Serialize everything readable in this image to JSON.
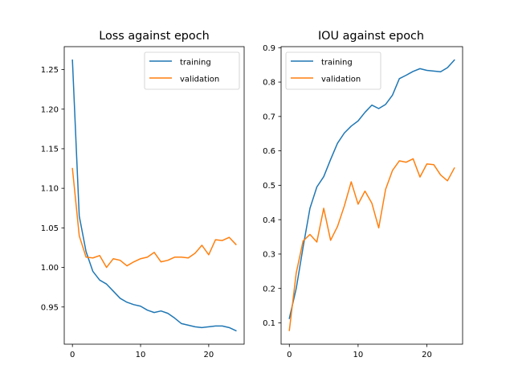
{
  "chart_data": [
    {
      "type": "line",
      "title": "Loss against epoch",
      "xlabel": "",
      "ylabel": "",
      "xlim": [
        -1.2,
        25.2
      ],
      "ylim": [
        0.903,
        1.279
      ],
      "xticks": [
        0,
        10,
        20
      ],
      "yticks": [
        0.95,
        1.0,
        1.05,
        1.1,
        1.15,
        1.2,
        1.25
      ],
      "ytick_labels": [
        "0.95",
        "1.00",
        "1.05",
        "1.10",
        "1.15",
        "1.20",
        "1.25"
      ],
      "legend": "top-right",
      "grid": false,
      "x": [
        0,
        1,
        2,
        3,
        4,
        5,
        6,
        7,
        8,
        9,
        10,
        11,
        12,
        13,
        14,
        15,
        16,
        17,
        18,
        19,
        20,
        21,
        22,
        23,
        24
      ],
      "series": [
        {
          "name": "training",
          "color": "#1f77b4",
          "values": [
            1.262,
            1.065,
            1.02,
            0.995,
            0.984,
            0.979,
            0.97,
            0.961,
            0.956,
            0.953,
            0.951,
            0.946,
            0.943,
            0.945,
            0.942,
            0.936,
            0.929,
            0.927,
            0.925,
            0.924,
            0.925,
            0.926,
            0.926,
            0.924,
            0.92
          ]
        },
        {
          "name": "validation",
          "color": "#ff7f0e",
          "values": [
            1.125,
            1.04,
            1.013,
            1.012,
            1.015,
            1.0,
            1.011,
            1.009,
            1.002,
            1.007,
            1.011,
            1.013,
            1.019,
            1.007,
            1.009,
            1.013,
            1.013,
            1.012,
            1.018,
            1.028,
            1.016,
            1.035,
            1.034,
            1.038,
            1.029
          ]
        }
      ]
    },
    {
      "type": "line",
      "title": "IOU against epoch",
      "xlabel": "",
      "ylabel": "",
      "xlim": [
        -1.2,
        25.2
      ],
      "ylim": [
        0.038,
        0.903
      ],
      "xticks": [
        0,
        10,
        20
      ],
      "yticks": [
        0.1,
        0.2,
        0.3,
        0.4,
        0.5,
        0.6,
        0.7,
        0.8,
        0.9
      ],
      "ytick_labels": [
        "0.1",
        "0.2",
        "0.3",
        "0.4",
        "0.5",
        "0.6",
        "0.7",
        "0.8",
        "0.9"
      ],
      "legend": "top-left",
      "grid": false,
      "x": [
        0,
        1,
        2,
        3,
        4,
        5,
        6,
        7,
        8,
        9,
        10,
        11,
        12,
        13,
        14,
        15,
        16,
        17,
        18,
        19,
        20,
        21,
        22,
        23,
        24
      ],
      "series": [
        {
          "name": "training",
          "color": "#1f77b4",
          "values": [
            0.113,
            0.2,
            0.32,
            0.433,
            0.495,
            0.525,
            0.575,
            0.622,
            0.652,
            0.672,
            0.687,
            0.712,
            0.733,
            0.723,
            0.735,
            0.762,
            0.81,
            0.82,
            0.831,
            0.839,
            0.834,
            0.832,
            0.83,
            0.842,
            0.864
          ]
        },
        {
          "name": "validation",
          "color": "#ff7f0e",
          "values": [
            0.078,
            0.245,
            0.338,
            0.357,
            0.335,
            0.433,
            0.34,
            0.38,
            0.44,
            0.51,
            0.445,
            0.483,
            0.448,
            0.376,
            0.488,
            0.543,
            0.571,
            0.567,
            0.577,
            0.524,
            0.562,
            0.56,
            0.53,
            0.513,
            0.55
          ]
        }
      ]
    }
  ]
}
